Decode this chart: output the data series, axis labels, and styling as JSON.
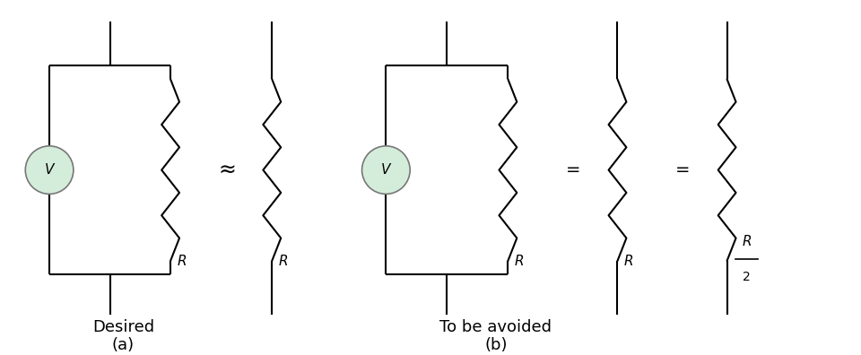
{
  "bg_color": "#ffffff",
  "line_color": "#000000",
  "voltmeter_fill": "#d4edda",
  "voltmeter_stroke": "#888888",
  "label_a": "(a)",
  "label_b": "(b)",
  "text_desired": "Desired",
  "text_avoided": "To be avoided",
  "approx_symbol": "≈",
  "equals_symbol": "=",
  "fig_width": 9.6,
  "fig_height": 3.96,
  "font_size_label": 13,
  "font_size_R": 11
}
